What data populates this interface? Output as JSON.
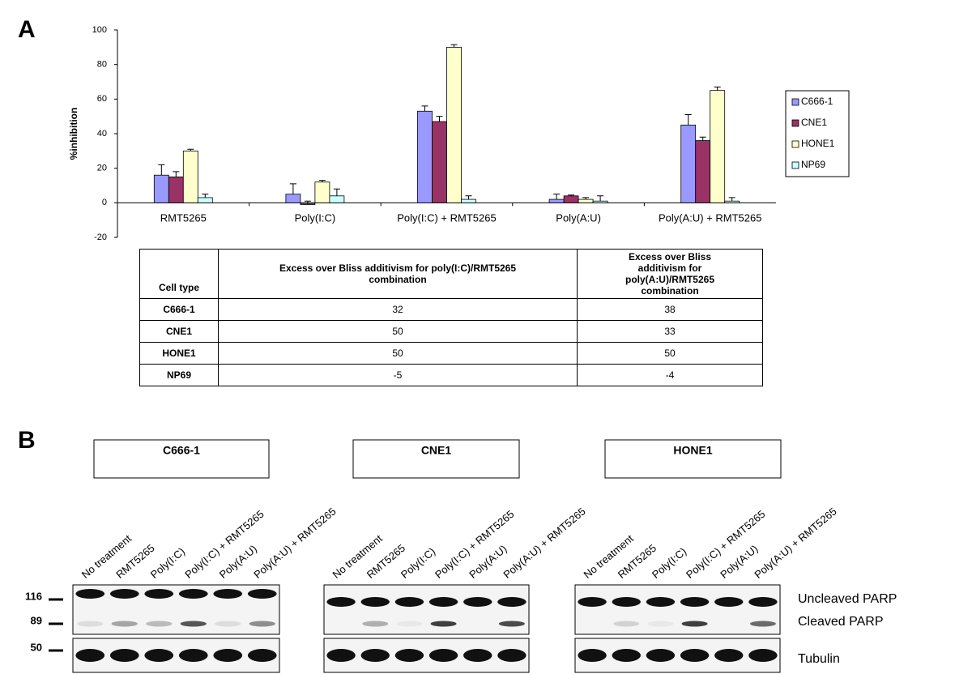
{
  "panel_a_label": "A",
  "chart_data": {
    "type": "bar",
    "y_label": "%inhibition",
    "categories": [
      "RMT5265",
      "Poly(I:C)",
      "Poly(I:C) + RMT5265",
      "Poly(A:U)",
      "Poly(A:U) + RMT5265"
    ],
    "series": [
      {
        "name": "C666-1",
        "color": "#9999ff",
        "values": [
          16,
          5,
          53,
          2,
          45
        ],
        "errors": [
          6,
          6,
          3,
          3,
          6
        ]
      },
      {
        "name": "CNE1",
        "color": "#993366",
        "values": [
          15,
          -1,
          47,
          4,
          36
        ],
        "errors": [
          3,
          2,
          3,
          0.5,
          2
        ]
      },
      {
        "name": "HONE1",
        "color": "#ffffcc",
        "values": [
          30,
          12,
          90,
          2,
          65
        ],
        "errors": [
          1,
          1,
          1.5,
          1,
          2
        ]
      },
      {
        "name": "NP69",
        "color": "#ccffff",
        "values": [
          3,
          4,
          2,
          1,
          1
        ],
        "errors": [
          2,
          4,
          2,
          3,
          2
        ]
      }
    ],
    "ylim": [
      -20,
      100
    ],
    "yticks": [
      -20,
      0,
      20,
      40,
      60,
      80,
      100
    ],
    "grid": false,
    "legend": "right"
  },
  "table": {
    "header": [
      "Cell type",
      "Excess over Bliss additivism for poly(I:C)/RMT5265 combination",
      "Excess over Bliss additivism for poly(A:U)/RMT5265 combination"
    ],
    "rows": [
      [
        "C666-1",
        32,
        38
      ],
      [
        "CNE1",
        50,
        33
      ],
      [
        "HONE1",
        50,
        50
      ],
      [
        "NP69",
        -5,
        -4
      ]
    ]
  },
  "panel_b": {
    "label": "B",
    "groups": [
      {
        "name": "C666-1",
        "lanes": [
          "No treatment",
          "RMT5265",
          "Poly(I:C)",
          "Poly(I:C) + RMT5265",
          "Poly(A:U)",
          "Poly(A:U) + RMT5265"
        ]
      },
      {
        "name": "CNE1",
        "lanes": [
          "No treatment",
          "RMT5265",
          "Poly(I:C)",
          "Poly(I:C) + RMT5265",
          "Poly(A:U)",
          "Poly(A:U) + RMT5265"
        ]
      },
      {
        "name": "HONE1",
        "lanes": [
          "No treatment",
          "RMT5265",
          "Poly(I:C)",
          "Poly(I:C) + RMT5265",
          "Poly(A:U)",
          "Poly(A:U) + RMT5265"
        ]
      }
    ],
    "markers": [
      "116",
      "89",
      "50"
    ],
    "band_labels": [
      "Uncleaved PARP",
      "Cleaved PARP",
      "Tubulin"
    ]
  }
}
